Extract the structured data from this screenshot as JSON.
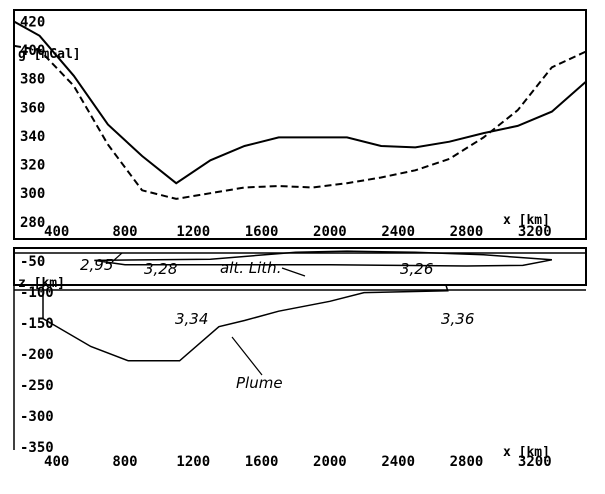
{
  "chart_data": [
    {
      "type": "line",
      "panel": "gravity",
      "ylabel": "g [mGal]",
      "xlabel": "x [km]",
      "x_ticks": [
        "400",
        "800",
        "1200",
        "1600",
        "2000",
        "2400",
        "2800",
        "3200"
      ],
      "y_ticks": [
        "420",
        "400",
        "380",
        "360",
        "340",
        "320",
        "300",
        "280"
      ],
      "xlim": [
        150,
        3500
      ],
      "ylim": [
        268,
        428
      ],
      "grid": false,
      "series": [
        {
          "style": "solid",
          "x": [
            150,
            300,
            500,
            700,
            900,
            1100,
            1300,
            1500,
            1700,
            1900,
            2100,
            2300,
            2500,
            2700,
            2900,
            3100,
            3300,
            3500
          ],
          "y": [
            420,
            410,
            382,
            348,
            326,
            307,
            323,
            333,
            339,
            339,
            339,
            333,
            332,
            336,
            342,
            347,
            357,
            378
          ]
        },
        {
          "style": "dashed",
          "x": [
            150,
            300,
            500,
            700,
            900,
            1100,
            1300,
            1500,
            1700,
            1900,
            2100,
            2300,
            2500,
            2700,
            2900,
            3100,
            3300,
            3500
          ],
          "y": [
            403,
            400,
            375,
            334,
            302,
            296,
            300,
            304,
            305,
            304,
            307,
            311,
            316,
            324,
            339,
            358,
            388,
            399
          ]
        }
      ]
    },
    {
      "type": "area",
      "panel": "model",
      "ylabel": "z [km]",
      "xlabel": "x [km]",
      "x_ticks": [
        "400",
        "800",
        "1200",
        "1600",
        "2000",
        "2400",
        "2800",
        "3200"
      ],
      "y_ticks": [
        "-50",
        "-100",
        "-150",
        "-200",
        "-250",
        "-300",
        "-350"
      ],
      "xlim": [
        150,
        3500
      ],
      "ylim": [
        -384,
        -29
      ],
      "grid": false,
      "bodies": [
        {
          "label": "alt. Lith.",
          "x": [
            620,
            1300,
            1800,
            2100,
            2500,
            2900,
            3300,
            3130,
            2800,
            2400,
            2000,
            1600,
            1200,
            800,
            620
          ],
          "y": [
            -49,
            -47,
            -36,
            -34,
            -36,
            -40,
            -48,
            -57,
            -58,
            -57,
            -56,
            -56,
            -56,
            -56,
            -49
          ]
        },
        {
          "label": "Plume",
          "x": [
            320,
            2680,
            2690,
            2200,
            2000,
            1700,
            1500,
            1350,
            1120,
            820,
            600,
            320,
            320
          ],
          "y": [
            -89,
            -89,
            -98,
            -101,
            -115,
            -131,
            -146,
            -156,
            -211,
            -211,
            -188,
            -143,
            -89
          ]
        }
      ],
      "annotations": [
        "2,95",
        "3,28",
        "alt. Lith.",
        "3,26",
        "3,34",
        "3,36",
        "Plume"
      ]
    }
  ]
}
